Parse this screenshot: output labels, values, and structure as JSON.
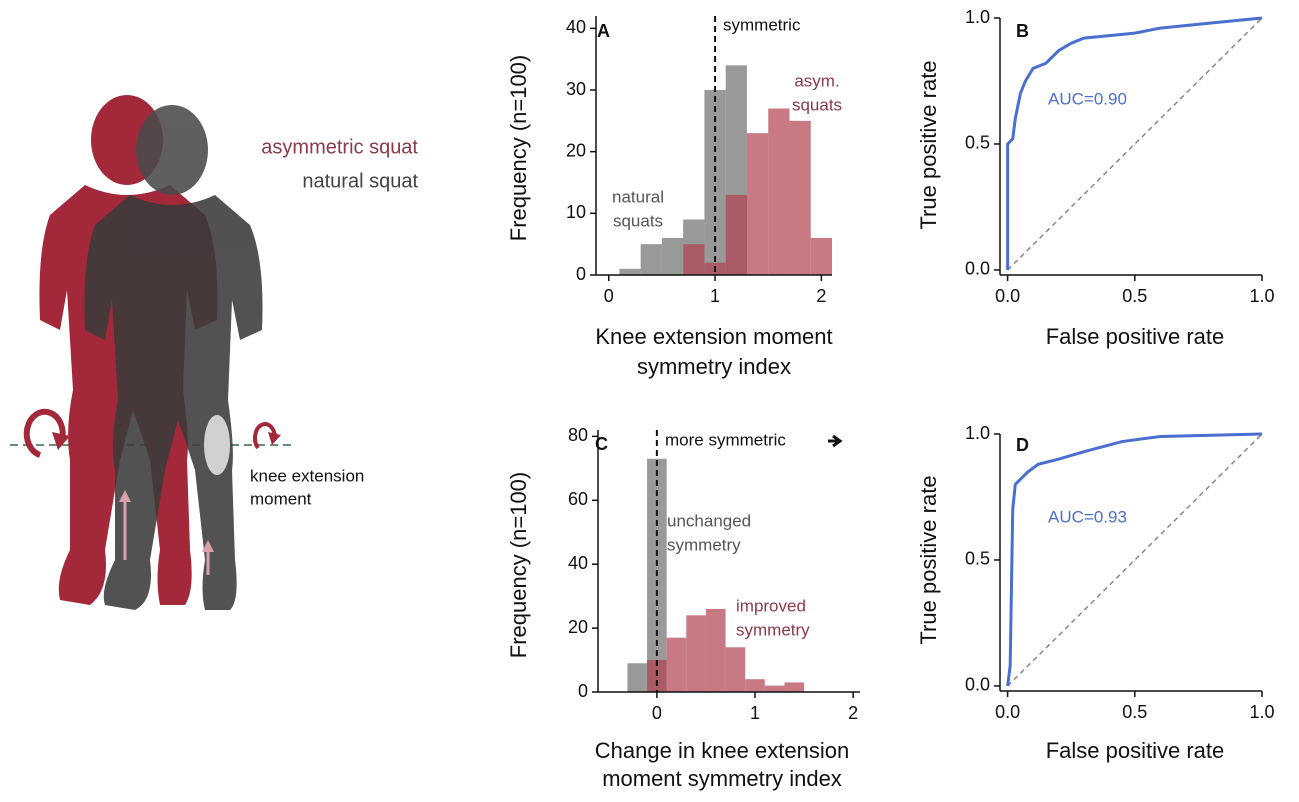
{
  "illustration": {
    "asymmetric_label": "asymmetric squat",
    "natural_label": "natural squat",
    "moment_label": [
      "knee extension",
      "moment"
    ]
  },
  "chart_data": [
    {
      "type": "histogram",
      "panel": "A",
      "ylabel": "Frequency (n=100)",
      "xlabel": [
        "Knee extension moment",
        "symmetry index"
      ],
      "xlim": [
        -0.12,
        2.1
      ],
      "ylim": [
        0,
        42
      ],
      "xticks": [
        0,
        1,
        2
      ],
      "yticks": [
        0,
        10,
        20,
        30,
        40
      ],
      "vline": 1,
      "series": [
        {
          "color": "#6e6e6e",
          "bins": [
            0.1,
            0.3,
            0.5,
            0.7,
            0.9,
            1.1,
            1.3
          ],
          "values": [
            1,
            5,
            6,
            9,
            30,
            34
          ]
        },
        {
          "color": "#b0404f",
          "bins": [
            0.7,
            0.9,
            1.1,
            1.3,
            1.5,
            1.7,
            1.9,
            2.1
          ],
          "values": [
            5,
            2,
            13,
            23,
            27,
            25,
            6
          ]
        }
      ],
      "annotations": [
        [
          "symmetric"
        ],
        [
          "asym.",
          "squats"
        ],
        [
          "natural",
          "squats"
        ]
      ]
    },
    {
      "type": "line",
      "panel": "B",
      "ylabel": "True positive rate",
      "xlabel": "False positive rate",
      "xlim": [
        -0.03,
        1.0
      ],
      "ylim": [
        -0.02,
        1.0
      ],
      "xticks": [
        {
          "value": 0,
          "label": "0.0"
        },
        0.5,
        {
          "value": 1,
          "label": "1.0"
        }
      ],
      "yticks": [
        {
          "value": 0,
          "label": "0.0"
        },
        0.5,
        {
          "value": 1,
          "label": "1.0"
        }
      ],
      "diagonal": true,
      "x": [
        0,
        0,
        0.02,
        0.03,
        0.05,
        0.07,
        0.1,
        0.15,
        0.2,
        0.25,
        0.3,
        0.4,
        0.5,
        0.6,
        0.8,
        0.9,
        1
      ],
      "series": [
        {
          "color": "#4a6fd0",
          "values": [
            0,
            0.5,
            0.52,
            0.6,
            0.7,
            0.75,
            0.8,
            0.82,
            0.87,
            0.9,
            0.92,
            0.93,
            0.94,
            0.96,
            0.98,
            0.99,
            1
          ]
        }
      ],
      "annotations": [
        [
          "AUC=0.90"
        ]
      ]
    },
    {
      "type": "histogram",
      "panel": "C",
      "ylabel": "Frequency (n=100)",
      "xlabel": [
        "Change in knee extension",
        "moment symmetry index"
      ],
      "xlim": [
        -0.6,
        2.07
      ],
      "ylim": [
        0,
        82
      ],
      "xticks": [
        0,
        1,
        2
      ],
      "yticks": [
        0,
        20,
        40,
        60,
        80
      ],
      "vline": 0,
      "series": [
        {
          "color": "#6e6e6e",
          "bins": [
            -0.3,
            -0.1,
            0.1
          ],
          "values": [
            9,
            73
          ]
        },
        {
          "color": "#b0404f",
          "bins": [
            -0.1,
            0.1,
            0.3,
            0.5,
            0.7,
            0.9,
            1.1,
            1.3,
            1.5
          ],
          "values": [
            10,
            17,
            24,
            26,
            14,
            4,
            2,
            3
          ]
        }
      ],
      "annotations": [
        [
          "more symmetric"
        ],
        [
          "unchanged",
          "symmetry"
        ],
        [
          "improved",
          "symmetry"
        ]
      ]
    },
    {
      "type": "line",
      "panel": "D",
      "ylabel": "True positive rate",
      "xlabel": "False positive rate",
      "xlim": [
        -0.03,
        1.0
      ],
      "ylim": [
        -0.02,
        1.0
      ],
      "xticks": [
        {
          "value": 0,
          "label": "0.0"
        },
        0.5,
        {
          "value": 1,
          "label": "1.0"
        }
      ],
      "yticks": [
        {
          "value": 0,
          "label": "0.0"
        },
        0.5,
        {
          "value": 1,
          "label": "1.0"
        }
      ],
      "diagonal": true,
      "x": [
        0,
        0.01,
        0.02,
        0.03,
        0.05,
        0.08,
        0.12,
        0.2,
        0.3,
        0.45,
        0.6,
        1
      ],
      "series": [
        {
          "color": "#4a6fd0",
          "values": [
            0,
            0.08,
            0.7,
            0.8,
            0.82,
            0.85,
            0.88,
            0.9,
            0.93,
            0.97,
            0.99,
            1
          ]
        }
      ],
      "annotations": [
        [
          "AUC=0.93"
        ]
      ]
    }
  ]
}
